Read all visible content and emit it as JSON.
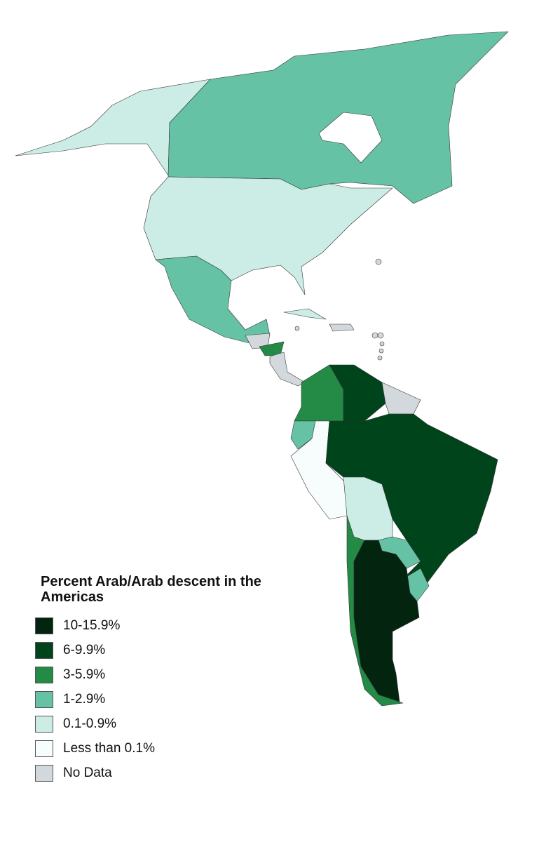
{
  "legend": {
    "title": "Percent Arab/Arab descent in the Americas",
    "items": [
      {
        "label": "10-15.9%",
        "color": "#03240f"
      },
      {
        "label": "6-9.9%",
        "color": "#00441b"
      },
      {
        "label": "3-5.9%",
        "color": "#238b45"
      },
      {
        "label": "1-2.9%",
        "color": "#66c2a4"
      },
      {
        "label": "0.1-0.9%",
        "color": "#ccece6"
      },
      {
        "label": "Less than 0.1%",
        "color": "#f7fcfd"
      },
      {
        "label": "No Data",
        "color": "#d3d8dc"
      }
    ]
  }
}
